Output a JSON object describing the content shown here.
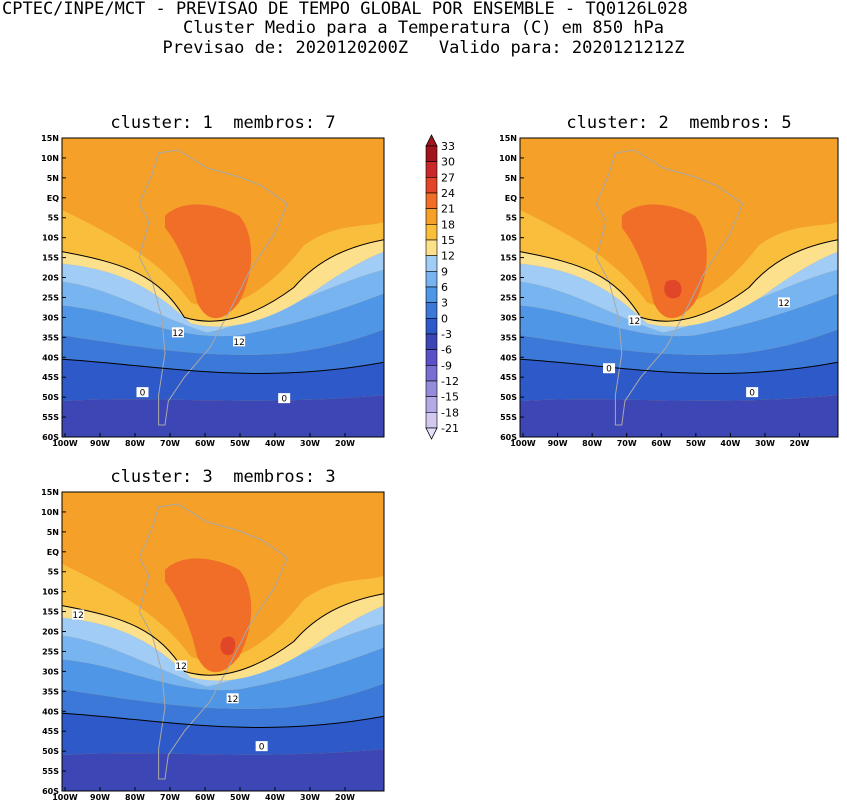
{
  "header": {
    "line1": "CPTEC/INPE/MCT - PREVISAO DE TEMPO GLOBAL POR ENSEMBLE - TQ0126L028",
    "line2": "Cluster Medio para a Temperatura (C) em 850 hPa",
    "line3": "Previsao de: 2020120200Z   Valido para: 2020121212Z"
  },
  "panels": [
    {
      "id": "cluster1",
      "title": "cluster: 1  membros: 7",
      "contour_labels": [
        {
          "text": "12"
        },
        {
          "text": "12"
        },
        {
          "text": "0"
        },
        {
          "text": "0"
        }
      ]
    },
    {
      "id": "cluster2",
      "title": "cluster: 2  membros: 5",
      "contour_labels": [
        {
          "text": "12"
        },
        {
          "text": "12"
        },
        {
          "text": "0"
        },
        {
          "text": "0"
        }
      ]
    },
    {
      "id": "cluster3",
      "title": "cluster: 3  membros: 3",
      "contour_labels": [
        {
          "text": "12"
        },
        {
          "text": "12"
        },
        {
          "text": "12"
        },
        {
          "text": "0"
        }
      ]
    }
  ],
  "lat_labels": [
    "15N",
    "10N",
    "5N",
    "EQ",
    "5S",
    "10S",
    "15S",
    "20S",
    "25S",
    "30S",
    "35S",
    "40S",
    "45S",
    "50S",
    "55S",
    "60S"
  ],
  "lon_labels": [
    "100W",
    "90W",
    "80W",
    "70W",
    "60W",
    "50W",
    "40W",
    "30W",
    "20W"
  ],
  "colorbar": {
    "labels": [
      "33",
      "30",
      "27",
      "24",
      "21",
      "18",
      "15",
      "12",
      "9",
      "6",
      "3",
      "0",
      "-3",
      "-6",
      "-9",
      "-12",
      "-15",
      "-18",
      "-21"
    ],
    "colors": [
      "#a0141e",
      "#c82828",
      "#e14628",
      "#f06e28",
      "#f5a028",
      "#f8be3c",
      "#fde08c",
      "#a0ccf5",
      "#78b4f0",
      "#5096e6",
      "#3c78d8",
      "#2d5ac8",
      "#3c46b4",
      "#5a50c8",
      "#786ed2",
      "#968cdc",
      "#b4aae6",
      "#d2c8f0"
    ]
  },
  "map_colors": {
    "c18": "#f5a028",
    "c15": "#f8be3c",
    "c12": "#fde08c",
    "c9": "#a0ccf5",
    "c6": "#78b4f0",
    "c3": "#5096e6",
    "c0": "#3c78d8",
    "cm3": "#2d5ac8",
    "cm6": "#3c46b4",
    "c21": "#f06e28",
    "c24": "#e14628",
    "land": "#a8a8a8"
  }
}
